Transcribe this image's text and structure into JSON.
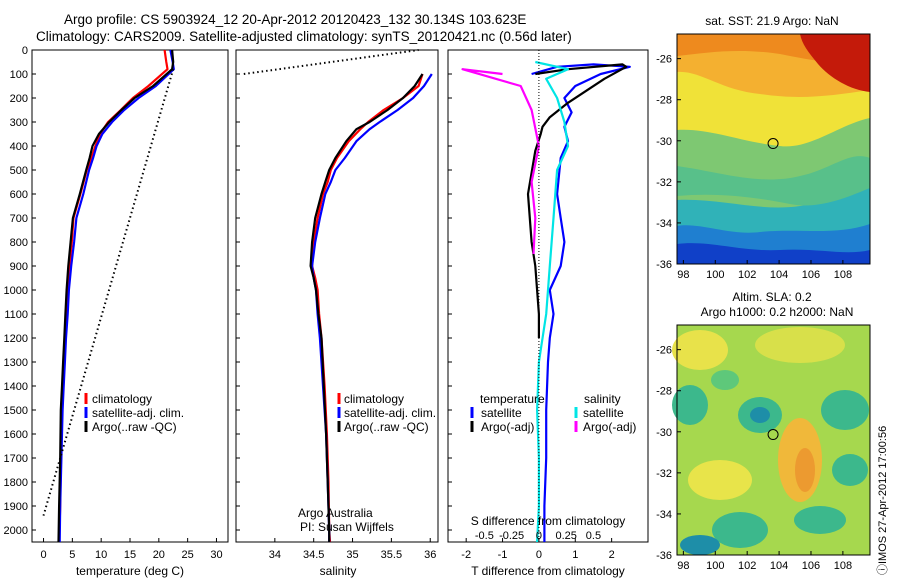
{
  "title": {
    "line1": "Argo profile: CS 5903924_12 20-Apr-2012 20120423_132 30.134S 103.623E",
    "line2": "Climatology: CARS2009. Satellite-adjusted climatology: synTS_20120421.nc (0.56d later)"
  },
  "colors": {
    "climatology": "#ff0000",
    "satellite": "#0000ff",
    "argo": "#000000",
    "salinity_satellite": "#00e5e5",
    "salinity_argo": "#ff00ff"
  },
  "depth_axis": {
    "ylim": [
      0,
      2050
    ],
    "ticks": [
      0,
      100,
      200,
      300,
      400,
      500,
      600,
      700,
      800,
      900,
      1000,
      1100,
      1200,
      1300,
      1400,
      1500,
      1600,
      1700,
      1800,
      1900,
      2000
    ]
  },
  "legend": {
    "climatology": "climatology",
    "satellite_adj": "satellite-adj. clim.",
    "argo_raw": "Argo(..raw -QC)",
    "temperature": "temperature",
    "salinity": "salinity",
    "satellite": "satellite",
    "argo_adj": "Argo(-adj)"
  },
  "credit": {
    "line1": "Argo Australia",
    "line2": "PI: Susan Wijffels"
  },
  "stamp": "ⓘIMOS 27-Apr-2012 17:00:56",
  "maps": {
    "sst_title": "sat. SST: 21.9 Argo: NaN",
    "sla_title_1": "Altim. SLA: 0.2",
    "sla_title_2": "Argo h1000: 0.2 h2000: NaN",
    "lon_ticks": [
      "98",
      "100",
      "102",
      "104",
      "106",
      "108"
    ],
    "lat_ticks": [
      "-26",
      "-28",
      "-30",
      "-32",
      "-34",
      "-36"
    ],
    "lon_range": [
      97.6,
      109.7
    ],
    "lat_range": [
      -36,
      -24.8
    ],
    "float_position": {
      "lon": 103.623,
      "lat": -30.134
    }
  },
  "chart_data": [
    {
      "type": "line",
      "xlabel": "temperature (deg C)",
      "xlim": [
        -2,
        32
      ],
      "xticks": [
        0,
        5,
        10,
        15,
        20,
        25,
        30
      ],
      "series": [
        {
          "name": "climatology",
          "style": "solid",
          "x": [
            21,
            21.3,
            21.5,
            18.2,
            15.5,
            13.4,
            11.2,
            9.8,
            9.0,
            8.3,
            7.5,
            6.4,
            5.2,
            4.9,
            4.5,
            4.2,
            4.0,
            3.8,
            3.6,
            3.4,
            3.2,
            3.0,
            2.9,
            2.7
          ],
          "y": [
            0,
            50,
            80,
            150,
            200,
            250,
            300,
            350,
            400,
            450,
            500,
            600,
            700,
            800,
            900,
            1000,
            1100,
            1200,
            1300,
            1400,
            1500,
            1700,
            1900,
            2050
          ]
        },
        {
          "name": "satellite-adj. clim.",
          "style": "solid",
          "x": [
            22,
            22.4,
            22.6,
            19.5,
            16.5,
            14.0,
            11.9,
            10.2,
            9.2,
            8.6,
            7.9,
            6.9,
            5.7,
            5.3,
            4.8,
            4.4,
            4.2,
            3.9,
            3.7,
            3.5,
            3.3,
            3.1,
            2.9,
            2.8
          ],
          "y": [
            0,
            50,
            80,
            150,
            200,
            250,
            300,
            350,
            400,
            450,
            500,
            600,
            700,
            800,
            900,
            1000,
            1100,
            1200,
            1300,
            1400,
            1500,
            1700,
            1900,
            2050
          ]
        },
        {
          "name": "Argo(..raw -QC)",
          "style": "solid",
          "x": [
            22.3,
            22.5,
            22.3,
            19.0,
            15.8,
            13.5,
            11.4,
            9.6,
            8.5,
            8.0,
            7.4,
            6.3,
            5.1,
            4.7,
            4.3,
            4.0,
            3.8,
            3.6,
            3.4,
            3.2,
            3.0,
            2.9,
            2.7,
            2.6
          ],
          "y": [
            0,
            50,
            80,
            150,
            200,
            250,
            300,
            350,
            400,
            450,
            500,
            600,
            700,
            800,
            900,
            1000,
            1100,
            1200,
            1300,
            1400,
            1500,
            1700,
            1900,
            2050
          ]
        },
        {
          "name": "",
          "style": "dotted",
          "x": [
            22.5,
            0
          ],
          "y": [
            80,
            1940
          ]
        }
      ]
    },
    {
      "type": "line",
      "xlabel": "salinity",
      "xlim": [
        33.5,
        36.1
      ],
      "xticks": [
        34,
        34.5,
        35,
        35.5,
        36
      ],
      "series": [
        {
          "name": "climatology",
          "style": "solid",
          "x": [
            35.9,
            35.85,
            35.65,
            35.4,
            35.2,
            35.1,
            34.95,
            34.8,
            34.72,
            34.68,
            34.62,
            34.55,
            34.5,
            34.48,
            34.52,
            34.55,
            34.57,
            34.6,
            34.64,
            34.67,
            34.69,
            34.7,
            34.71
          ],
          "y": [
            100,
            150,
            200,
            250,
            300,
            330,
            380,
            450,
            500,
            550,
            600,
            700,
            800,
            900,
            950,
            1000,
            1100,
            1200,
            1400,
            1600,
            1800,
            2000,
            2050
          ]
        },
        {
          "name": "satellite-adj. clim.",
          "style": "solid",
          "x": [
            36.02,
            35.92,
            35.78,
            35.58,
            35.35,
            35.22,
            35.05,
            34.9,
            34.78,
            34.72,
            34.65,
            34.58,
            34.52,
            34.48,
            34.5,
            34.53,
            34.55,
            34.58,
            34.62,
            34.66,
            34.68,
            34.7,
            34.7
          ],
          "y": [
            100,
            150,
            200,
            250,
            300,
            330,
            380,
            450,
            500,
            550,
            600,
            700,
            800,
            900,
            950,
            1000,
            1100,
            1200,
            1400,
            1600,
            1800,
            2000,
            2050
          ]
        },
        {
          "name": "Argo(..raw -QC)",
          "style": "solid",
          "x": [
            35.9,
            35.8,
            35.65,
            35.45,
            35.22,
            35.05,
            34.92,
            34.78,
            34.7,
            34.65,
            34.6,
            34.52,
            34.48,
            34.46,
            34.5,
            34.53,
            34.56,
            34.6,
            34.63,
            34.66,
            34.68,
            34.7,
            34.7
          ],
          "y": [
            100,
            150,
            200,
            250,
            300,
            330,
            380,
            450,
            500,
            550,
            600,
            700,
            800,
            900,
            950,
            1000,
            1100,
            1200,
            1400,
            1600,
            1800,
            2000,
            2050
          ]
        },
        {
          "name": "",
          "style": "dotted",
          "x": [
            33.6,
            35.85
          ],
          "y": [
            100,
            0
          ]
        }
      ]
    },
    {
      "type": "line",
      "xlabel": "T difference from climatology",
      "xlim": [
        -2.5,
        3
      ],
      "xticks": [
        -2,
        -1,
        0,
        1,
        2
      ],
      "x2label": "S difference from climatology",
      "x2ticks": [
        "-0.5",
        "-0.25",
        "0",
        "0.25",
        "0.5"
      ],
      "series": [
        {
          "name": "temperature satellite",
          "style": "solid",
          "x": [
            -0.2,
            0.5,
            1.5,
            2.5,
            1.7,
            1.0,
            0.7,
            0.9,
            0.7,
            0.8,
            0.6,
            0.5,
            0.6,
            0.7,
            0.6,
            0.3,
            0.4,
            0.3,
            0.25,
            0.2,
            0.2,
            0.15,
            0.15
          ],
          "y": [
            100,
            70,
            60,
            70,
            100,
            150,
            200,
            260,
            320,
            380,
            450,
            600,
            700,
            800,
            900,
            1000,
            1100,
            1200,
            1300,
            1500,
            1700,
            1900,
            2050
          ]
        },
        {
          "name": "temperature Argo(-adj)",
          "style": "solid",
          "x": [
            -0.1,
            0.8,
            2.3,
            2.4,
            1.8,
            1.3,
            0.8,
            0.3,
            0.1,
            0.05,
            -0.1,
            -0.3,
            -0.2,
            -0.1,
            -0.05,
            0.0,
            0.0
          ],
          "y": [
            100,
            80,
            60,
            70,
            120,
            170,
            220,
            280,
            320,
            350,
            420,
            600,
            800,
            900,
            1000,
            1100,
            1200
          ]
        },
        {
          "name": "salinity satellite",
          "style": "solid",
          "x": [
            -0.1,
            0.8,
            0.2,
            0.5,
            0.7,
            0.8,
            0.5,
            0.4,
            0.3,
            0.2,
            0.0,
            -0.05,
            0.0,
            0.0,
            -0.05
          ],
          "y": [
            50,
            80,
            120,
            200,
            300,
            400,
            500,
            700,
            900,
            1100,
            1300,
            1500,
            1700,
            1900,
            2050
          ]
        },
        {
          "name": "salinity Argo(-adj)",
          "style": "solid",
          "x": [
            -1.0,
            -2.1,
            -0.5,
            -0.2,
            0.0,
            -0.2,
            -0.1,
            -0.15
          ],
          "y": [
            100,
            80,
            150,
            250,
            400,
            550,
            700,
            850
          ]
        }
      ]
    }
  ]
}
